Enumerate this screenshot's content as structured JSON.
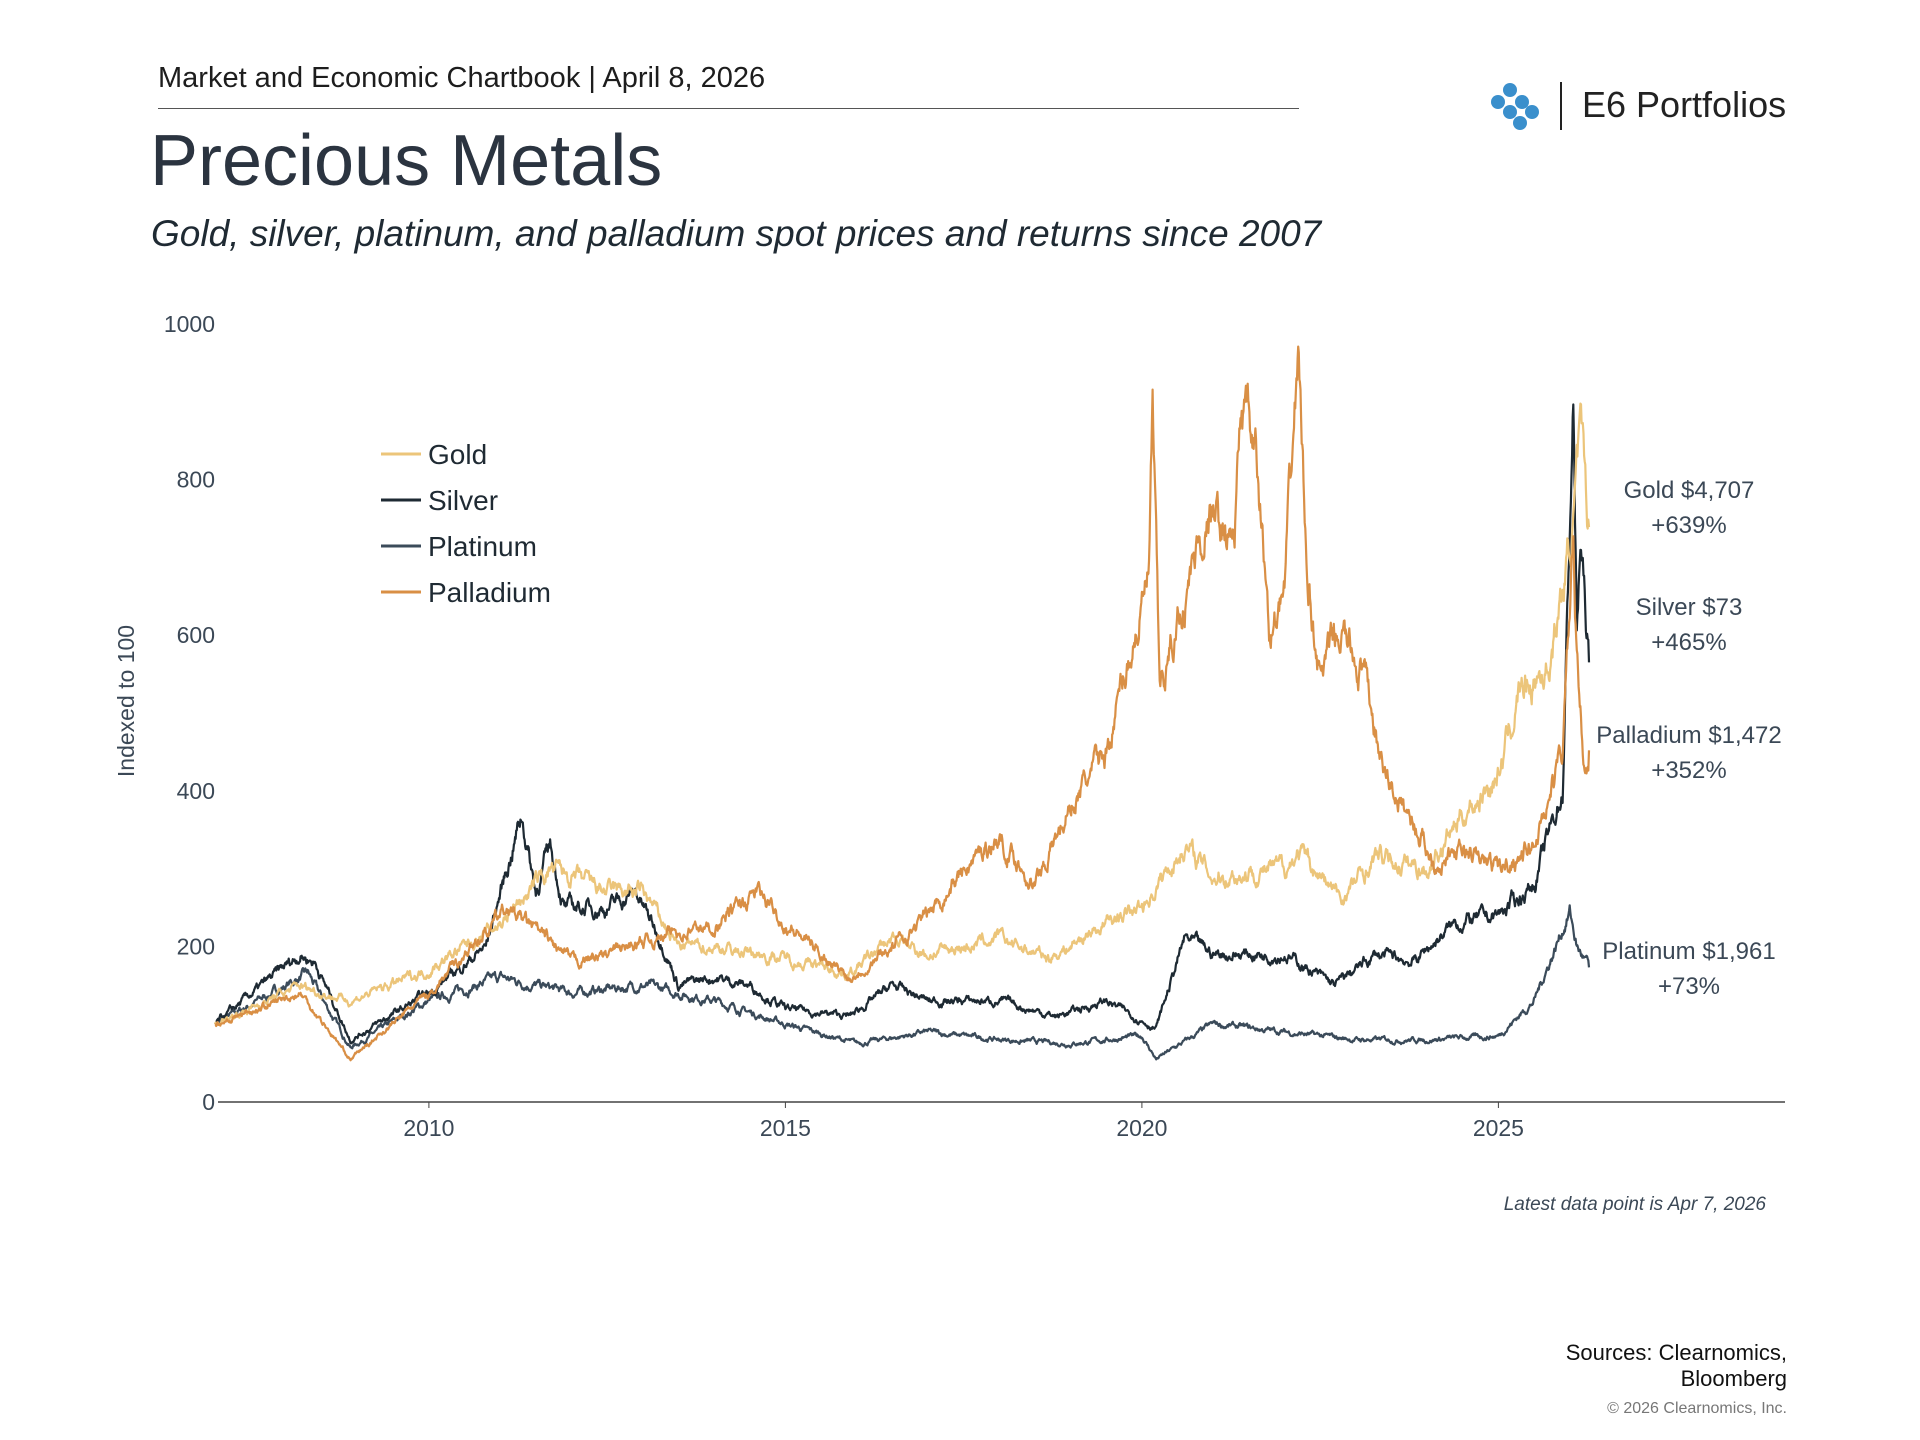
{
  "header": {
    "kicker": "Market and Economic Chartbook | April 8, 2026",
    "title": "Precious Metals",
    "subtitle": "Gold, silver, platinum, and palladium spot prices and returns since 2007",
    "brand": "E6 Portfolios",
    "logo_color": "#3a8fcc"
  },
  "chart_data": {
    "type": "line",
    "ylabel": "Indexed to 100",
    "xlabel": "",
    "ylim": [
      0,
      1000
    ],
    "xlim": [
      2007,
      2029
    ],
    "y_ticks": [
      "0",
      "200",
      "400",
      "600",
      "800",
      "1000"
    ],
    "x_ticks": [
      "2010",
      "2015",
      "2020",
      "2025"
    ],
    "grid": false,
    "legend_position": "top-left",
    "series": [
      {
        "name": "Gold",
        "color": "#ecc57a",
        "x": [
          2007,
          2008.2,
          2008.5,
          2008.9,
          2010,
          2011,
          2011.7,
          2012.5,
          2013,
          2013.5,
          2014,
          2015,
          2015.9,
          2016.5,
          2017,
          2018,
          2018.7,
          2019.5,
          2020,
          2020.6,
          2021,
          2022,
          2022.2,
          2022.8,
          2023.3,
          2024,
          2024.5,
          2025,
          2025.3,
          2025.7,
          2025.95,
          2026.1,
          2026.15,
          2026.27
        ],
        "values": [
          100,
          150,
          140,
          130,
          170,
          230,
          300,
          270,
          270,
          200,
          200,
          185,
          165,
          210,
          190,
          210,
          185,
          230,
          250,
          330,
          290,
          300,
          320,
          260,
          315,
          300,
          370,
          420,
          530,
          560,
          680,
          800,
          836,
          739
        ]
      },
      {
        "name": "Silver",
        "color": "#1e2a33",
        "x": [
          2007,
          2008.2,
          2008.4,
          2008.9,
          2010,
          2010.8,
          2011.3,
          2011.5,
          2011.7,
          2011.9,
          2012.5,
          2012.9,
          2013.3,
          2013.5,
          2014,
          2014.5,
          2015,
          2015.9,
          2016.5,
          2017,
          2018,
          2018.8,
          2019.5,
          2020.2,
          2020.6,
          2021,
          2022,
          2022.7,
          2023.3,
          2023.8,
          2024.4,
          2025,
          2025.5,
          2025.9,
          2026.05,
          2026.1,
          2026.15,
          2026.27
        ],
        "values": [
          100,
          190,
          180,
          80,
          140,
          200,
          370,
          270,
          330,
          250,
          250,
          270,
          200,
          150,
          160,
          150,
          120,
          110,
          150,
          130,
          130,
          110,
          130,
          95,
          210,
          190,
          190,
          150,
          190,
          180,
          230,
          240,
          280,
          400,
          900,
          600,
          720,
          565
        ]
      },
      {
        "name": "Platinum",
        "color": "#3b4b5a",
        "x": [
          2007,
          2008.3,
          2008.9,
          2010,
          2011,
          2012,
          2013,
          2014,
          2015,
          2016,
          2017,
          2018,
          2019,
          2020,
          2020.2,
          2021,
          2022,
          2023,
          2024,
          2025,
          2025.5,
          2026.0,
          2026.1,
          2026.27
        ],
        "values": [
          100,
          165,
          70,
          130,
          160,
          140,
          150,
          130,
          100,
          75,
          90,
          80,
          75,
          85,
          55,
          100,
          90,
          80,
          80,
          85,
          130,
          245,
          200,
          173
        ]
      },
      {
        "name": "Palladium",
        "color": "#d98f45",
        "x": [
          2007,
          2008.2,
          2008.9,
          2010,
          2011.1,
          2011.5,
          2012,
          2012.5,
          2013.5,
          2014,
          2014.6,
          2015,
          2015.9,
          2016.5,
          2017,
          2017.5,
          2018,
          2018.5,
          2019,
          2019.5,
          2020.1,
          2020.15,
          2020.25,
          2020.5,
          2020.9,
          2021.3,
          2021.4,
          2021.6,
          2021.8,
          2022.0,
          2022.2,
          2022.3,
          2022.5,
          2022.8,
          2023.1,
          2023.4,
          2023.8,
          2024.1,
          2024.5,
          2025.0,
          2025.5,
          2025.9,
          2026.05,
          2026.1,
          2026.2,
          2026.27
        ],
        "values": [
          100,
          140,
          55,
          140,
          250,
          220,
          180,
          190,
          220,
          225,
          270,
          230,
          160,
          200,
          240,
          300,
          340,
          280,
          380,
          450,
          680,
          880,
          520,
          620,
          750,
          730,
          900,
          820,
          600,
          650,
          970,
          700,
          550,
          600,
          550,
          420,
          360,
          310,
          320,
          300,
          330,
          450,
          720,
          560,
          430,
          452
        ]
      }
    ],
    "annotations": [
      {
        "metal": "Gold",
        "line1": "Gold $4,707",
        "line2": "+639%"
      },
      {
        "metal": "Silver",
        "line1": "Silver $73",
        "line2": "+465%"
      },
      {
        "metal": "Palladium",
        "line1": "Palladium $1,472",
        "line2": "+352%"
      },
      {
        "metal": "Platinum",
        "line1": "Platinum $1,961",
        "line2": "+73%"
      }
    ],
    "note": "Latest data point is Apr 7, 2026"
  },
  "footer": {
    "sources_line1": "Sources: Clearnomics,",
    "sources_line2": "Bloomberg",
    "copyright": "© 2026 Clearnomics, Inc."
  }
}
